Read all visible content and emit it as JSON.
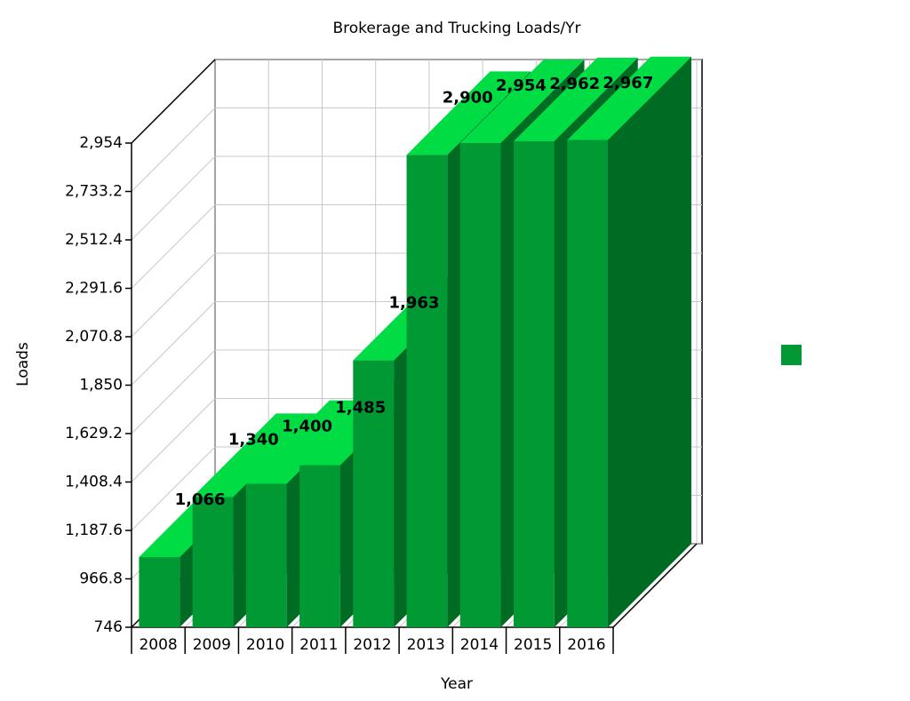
{
  "chart_data": {
    "type": "bar3d",
    "title": "Brokerage and Trucking Loads/Yr",
    "x_label": "Year",
    "y_label": "Loads",
    "categories": [
      "2008",
      "2009",
      "2010",
      "2011",
      "2012",
      "2013",
      "2014",
      "2015",
      "2016"
    ],
    "values": [
      1066,
      1340,
      1400,
      1485,
      1963,
      2900,
      2954,
      2962,
      2967
    ],
    "value_labels": [
      "1,066",
      "1,340",
      "1,400",
      "1,485",
      "1,963",
      "2,900",
      "2,954",
      "2,962",
      "2,967"
    ],
    "color": "#009933",
    "ylim": [
      746,
      2954
    ],
    "yticks": [
      746,
      966.8,
      {
        "value": 1187.6,
        "label": "1,187.6"
      },
      {
        "value": 1408.4,
        "label": "1,408.4"
      },
      {
        "value": 1629.2,
        "label": "1,629.2"
      },
      {
        "value": 1850,
        "label": "1,850"
      },
      {
        "value": 2070.8,
        "label": "2,070.8"
      },
      {
        "value": 2291.6,
        "label": "2,291.6"
      },
      {
        "value": 2512.4,
        "label": "2,512.4"
      },
      {
        "value": 2733.2,
        "label": "2,733.2"
      },
      {
        "value": 2954,
        "label": "2,954"
      }
    ],
    "grid": true
  }
}
